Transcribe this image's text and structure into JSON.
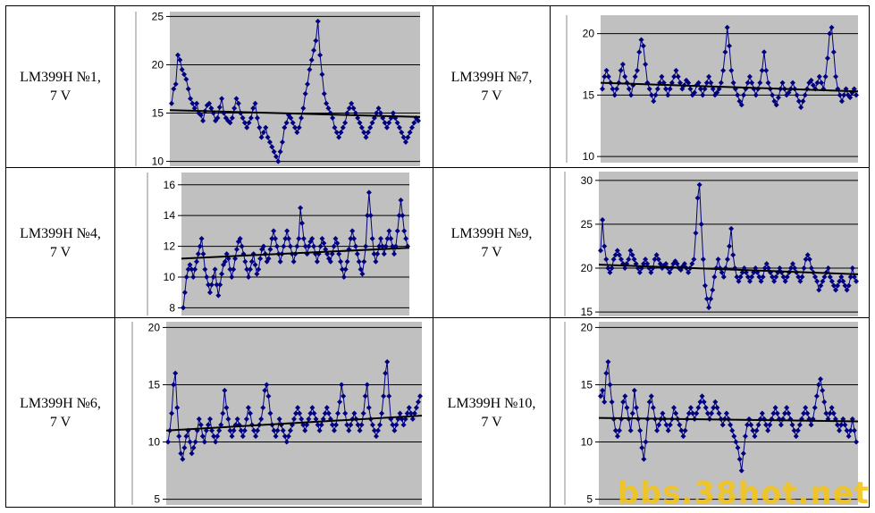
{
  "table": {
    "rows": [
      [
        {
          "label_line1": "LM399H №1,",
          "label_line2": "7 V",
          "chart": 0
        },
        {
          "label_line1": "LM399H №7,",
          "label_line2": "7 V",
          "chart": 1
        }
      ],
      [
        {
          "label_line1": "LM399H №4,",
          "label_line2": "7 V",
          "chart": 2
        },
        {
          "label_line1": "LM399H №9,",
          "label_line2": "7 V",
          "chart": 3
        }
      ],
      [
        {
          "label_line1": "LM399H №6,",
          "label_line2": "7 V",
          "chart": 4
        },
        {
          "label_line1": "LM399H №10,",
          "label_line2": "7 V",
          "chart": 5
        }
      ]
    ]
  },
  "colors": {
    "plot_bg": "#c0c0c0",
    "series": "#000080",
    "trend": "#000000",
    "grid": "#000000",
    "watermark": "#f5c518"
  },
  "watermark": "bbs.38hot.net",
  "chart_data": [
    {
      "type": "line",
      "title": "",
      "series_name": "",
      "ylim": [
        9.5,
        25.5
      ],
      "yticks": [
        10,
        15,
        20,
        25
      ],
      "grid": true,
      "trend": [
        15.3,
        14.6
      ],
      "values": [
        16,
        17.5,
        18,
        21,
        20.5,
        19.5,
        19,
        18.5,
        17.5,
        16.5,
        16,
        15.5,
        16,
        15,
        14.8,
        14.2,
        15.2,
        15.8,
        16,
        15.5,
        15,
        14.2,
        14.5,
        15.6,
        16.5,
        15,
        14.5,
        14.2,
        14,
        14.5,
        15.5,
        16.5,
        16,
        15,
        14.5,
        14,
        13.5,
        14,
        14.5,
        15.5,
        16,
        14.5,
        13.5,
        12.5,
        13,
        13.5,
        12.5,
        12,
        11.5,
        11,
        10.5,
        10,
        11,
        12,
        13.5,
        14,
        14.8,
        14.5,
        14,
        13.5,
        13,
        13.5,
        14.5,
        15.5,
        17,
        18,
        19.5,
        20.5,
        21.5,
        22.5,
        24.5,
        21,
        19,
        17,
        16,
        15.5,
        15,
        14.5,
        13.5,
        13,
        12.5,
        13,
        13.5,
        14,
        15,
        15.5,
        16,
        15.5,
        15,
        14.5,
        14,
        13.5,
        13,
        12.5,
        13,
        13.5,
        14,
        14.5,
        15,
        15.5,
        15,
        14.5,
        14,
        13.5,
        14,
        14.5,
        15,
        14.5,
        14,
        13.5,
        13,
        12.5,
        12,
        12.5,
        13,
        13.5,
        14,
        14.5,
        14.2
      ]
    },
    {
      "type": "line",
      "title": "",
      "series_name": "",
      "ylim": [
        9.5,
        21.5
      ],
      "yticks": [
        10,
        15,
        20
      ],
      "grid": true,
      "trend": [
        16,
        15.3
      ],
      "values": [
        15.5,
        16.5,
        17,
        16.5,
        16,
        15.5,
        15,
        15.5,
        16,
        17,
        17.5,
        16.5,
        16,
        15.5,
        15,
        15.8,
        16.5,
        17,
        18.5,
        19.5,
        19,
        17.5,
        16,
        15.5,
        15,
        14.5,
        15,
        15.5,
        16,
        16.5,
        16,
        15.5,
        15,
        15.5,
        16,
        16.5,
        17,
        16.5,
        16,
        15.5,
        15.8,
        16.2,
        16,
        15.5,
        15,
        15.2,
        15.8,
        16,
        15.5,
        15,
        15.5,
        16,
        16.5,
        16,
        15.5,
        15,
        15.2,
        15.5,
        16,
        17,
        18.5,
        20.5,
        19,
        17,
        16,
        15.5,
        15,
        14.5,
        14.2,
        15,
        15.5,
        16,
        16.5,
        16,
        15.5,
        15,
        15.5,
        16,
        17,
        18.5,
        17,
        16,
        15.5,
        15,
        14.5,
        14.2,
        14.8,
        15.5,
        16,
        15.5,
        15,
        15.2,
        15.5,
        16,
        15.5,
        15,
        14.5,
        14,
        14.5,
        15,
        15.5,
        16,
        16.2,
        15.8,
        15.5,
        16,
        16.5,
        16,
        15.5,
        16.5,
        18,
        20,
        20.5,
        18.5,
        16.5,
        15.5,
        15,
        14.5,
        15,
        15.5,
        15,
        14.8,
        15.2,
        15.5,
        15
      ]
    },
    {
      "type": "line",
      "title": "",
      "series_name": "",
      "ylim": [
        7.5,
        16.8
      ],
      "yticks": [
        8,
        10,
        12,
        14,
        16
      ],
      "grid": true,
      "trend": [
        11.2,
        11.9
      ],
      "values": [
        8,
        9,
        10,
        10.5,
        10.8,
        10.5,
        10,
        10.5,
        11,
        11.5,
        12,
        12.5,
        11.5,
        10.5,
        10,
        9.5,
        9,
        9.5,
        10,
        10.5,
        9.5,
        8.8,
        9.5,
        10.2,
        10.8,
        11,
        11.5,
        11.2,
        10.5,
        10,
        10.5,
        11.2,
        11.8,
        12.3,
        12.5,
        12,
        11.5,
        11,
        10.5,
        10,
        10.5,
        11,
        11.5,
        10.8,
        10.2,
        10.5,
        11.2,
        11.8,
        12,
        11.5,
        11,
        11.2,
        11.8,
        12.5,
        13,
        12.5,
        12,
        11.5,
        11,
        11.5,
        12,
        12.5,
        13,
        12.5,
        12,
        11.5,
        11,
        11.5,
        12,
        12.5,
        14.5,
        13.5,
        12.5,
        12,
        11.5,
        12,
        12.3,
        12.5,
        12,
        11.5,
        11,
        11.5,
        12,
        12.5,
        12.2,
        11.8,
        11.5,
        11.2,
        11,
        11.5,
        12,
        12.5,
        12.2,
        11.5,
        11,
        10.5,
        10,
        10.5,
        11,
        11.8,
        12.5,
        13,
        12.5,
        12,
        11.5,
        11,
        10.5,
        10.2,
        11,
        12,
        14,
        15.5,
        14,
        12.5,
        11.5,
        11,
        11.5,
        12,
        12.5,
        12,
        11.5,
        12,
        12.5,
        13,
        12.5,
        12,
        11.5,
        12,
        13,
        14,
        15,
        14,
        13,
        12.5,
        12
      ]
    },
    {
      "type": "line",
      "title": "",
      "series_name": "",
      "ylim": [
        14.5,
        31
      ],
      "yticks": [
        15,
        20,
        25,
        30
      ],
      "grid": true,
      "trend": [
        20.4,
        19.3
      ],
      "values": [
        22,
        25.5,
        22.5,
        21,
        20,
        19.5,
        20,
        21,
        21.5,
        22,
        21.5,
        21,
        20.5,
        20,
        20.5,
        21,
        22,
        21.5,
        21,
        20.5,
        20,
        19.5,
        20,
        20.5,
        21,
        20.5,
        20,
        19.5,
        20,
        21,
        21.5,
        21,
        20.5,
        20,
        20.3,
        20.5,
        20,
        19.5,
        20,
        20.5,
        20.8,
        20.5,
        20,
        19.8,
        20.2,
        20.5,
        20,
        19.5,
        20,
        20.5,
        21,
        24,
        28,
        29.5,
        25,
        21,
        18,
        16.5,
        15.5,
        16.5,
        17.5,
        19,
        20,
        21,
        20,
        19.5,
        19,
        20,
        21,
        22.5,
        24.5,
        21.5,
        20,
        19,
        18.5,
        19,
        19.5,
        20,
        19.5,
        19,
        18.5,
        19,
        19.5,
        20,
        19.5,
        19,
        18.5,
        19,
        20,
        20.5,
        20,
        19.5,
        19,
        18.5,
        19,
        19.5,
        20,
        19.5,
        19,
        18.5,
        19,
        19.5,
        20,
        20.5,
        20,
        19.5,
        19,
        18.5,
        19,
        20,
        21,
        21.5,
        21,
        20,
        19.5,
        19,
        18.5,
        17.5,
        18,
        18.5,
        19,
        19.5,
        20,
        19,
        18.5,
        18,
        17.5,
        18,
        18.5,
        19,
        18.5,
        18,
        17.5,
        18,
        19,
        20,
        19,
        18.5
      ]
    },
    {
      "type": "line",
      "title": "",
      "series_name": "",
      "ylim": [
        4.5,
        20.5
      ],
      "yticks": [
        5,
        10,
        15,
        20
      ],
      "grid": true,
      "trend": [
        11,
        12.3
      ],
      "values": [
        10,
        11,
        12.5,
        15,
        16,
        13,
        10.5,
        9,
        8.5,
        9.5,
        10.5,
        11,
        10,
        9,
        9.5,
        10,
        11,
        12,
        11.5,
        10.5,
        10,
        11,
        11.5,
        12,
        11,
        10.5,
        10,
        10.5,
        11,
        11.5,
        12.5,
        14.5,
        13,
        12,
        11,
        10.5,
        11,
        11.5,
        12,
        11.5,
        11,
        10.5,
        11,
        12,
        13,
        12.5,
        11.5,
        11,
        10.5,
        11,
        11.5,
        12,
        13,
        14.5,
        15,
        14,
        12.5,
        11.5,
        11,
        10.5,
        11,
        12,
        11.5,
        11,
        10.5,
        10,
        10.5,
        11,
        11.5,
        12,
        12.5,
        13,
        12.5,
        12,
        11.5,
        11,
        11.5,
        12,
        12.5,
        13,
        12.5,
        12,
        11.5,
        11,
        11.5,
        12,
        12.5,
        13,
        12.5,
        12,
        11.5,
        11,
        11.5,
        12.5,
        13.5,
        15,
        14,
        12.5,
        11.5,
        11,
        11.5,
        12,
        12.5,
        12,
        11.5,
        11,
        11.5,
        12.5,
        14,
        15,
        13,
        12,
        11.5,
        11,
        10.5,
        11,
        11.5,
        12.5,
        14,
        16,
        17,
        14,
        12,
        11.5,
        11,
        11.5,
        12,
        12.5,
        12,
        11.5,
        12,
        12.5,
        13,
        12.5,
        12,
        12.5,
        13,
        13.5,
        14
      ]
    },
    {
      "type": "line",
      "title": "",
      "series_name": "",
      "ylim": [
        4.5,
        20.5
      ],
      "yticks": [
        5,
        10,
        15,
        20
      ],
      "grid": true,
      "trend": [
        12.1,
        11.8
      ],
      "values": [
        14,
        14.5,
        13.5,
        16,
        17,
        15,
        13.5,
        12,
        11,
        10.5,
        11,
        12,
        13.5,
        14,
        13,
        12,
        11,
        12.5,
        14.5,
        13,
        12,
        11,
        9.5,
        8.5,
        10,
        12,
        13.5,
        14,
        13,
        12,
        11,
        11.5,
        12,
        12.5,
        12,
        11.5,
        11,
        11.5,
        12,
        13,
        12.5,
        12,
        11.5,
        11,
        10.5,
        11,
        12,
        12.5,
        13,
        12.5,
        12,
        12.5,
        13,
        13.5,
        14,
        13.5,
        13,
        12.5,
        12,
        12.5,
        13,
        13.5,
        13,
        12.5,
        12,
        11.5,
        12,
        12.5,
        12,
        11.5,
        11,
        10.5,
        10,
        9.5,
        8.5,
        7.5,
        9,
        10.5,
        11.5,
        12,
        11.5,
        11,
        10.5,
        11,
        11.5,
        12,
        12.5,
        12,
        11.5,
        11,
        11.5,
        12,
        12.5,
        13,
        12.5,
        12,
        11.5,
        12,
        12.5,
        13,
        12.5,
        12,
        11.5,
        11,
        10.5,
        11,
        11.5,
        12,
        12.5,
        13,
        12.5,
        12,
        11.5,
        12,
        13,
        14,
        15,
        15.5,
        14.5,
        13.5,
        12.5,
        12,
        12.5,
        13,
        12.5,
        12,
        11.5,
        11,
        11.5,
        12,
        11.5,
        11,
        10.5,
        11,
        12,
        11,
        10
      ]
    }
  ]
}
